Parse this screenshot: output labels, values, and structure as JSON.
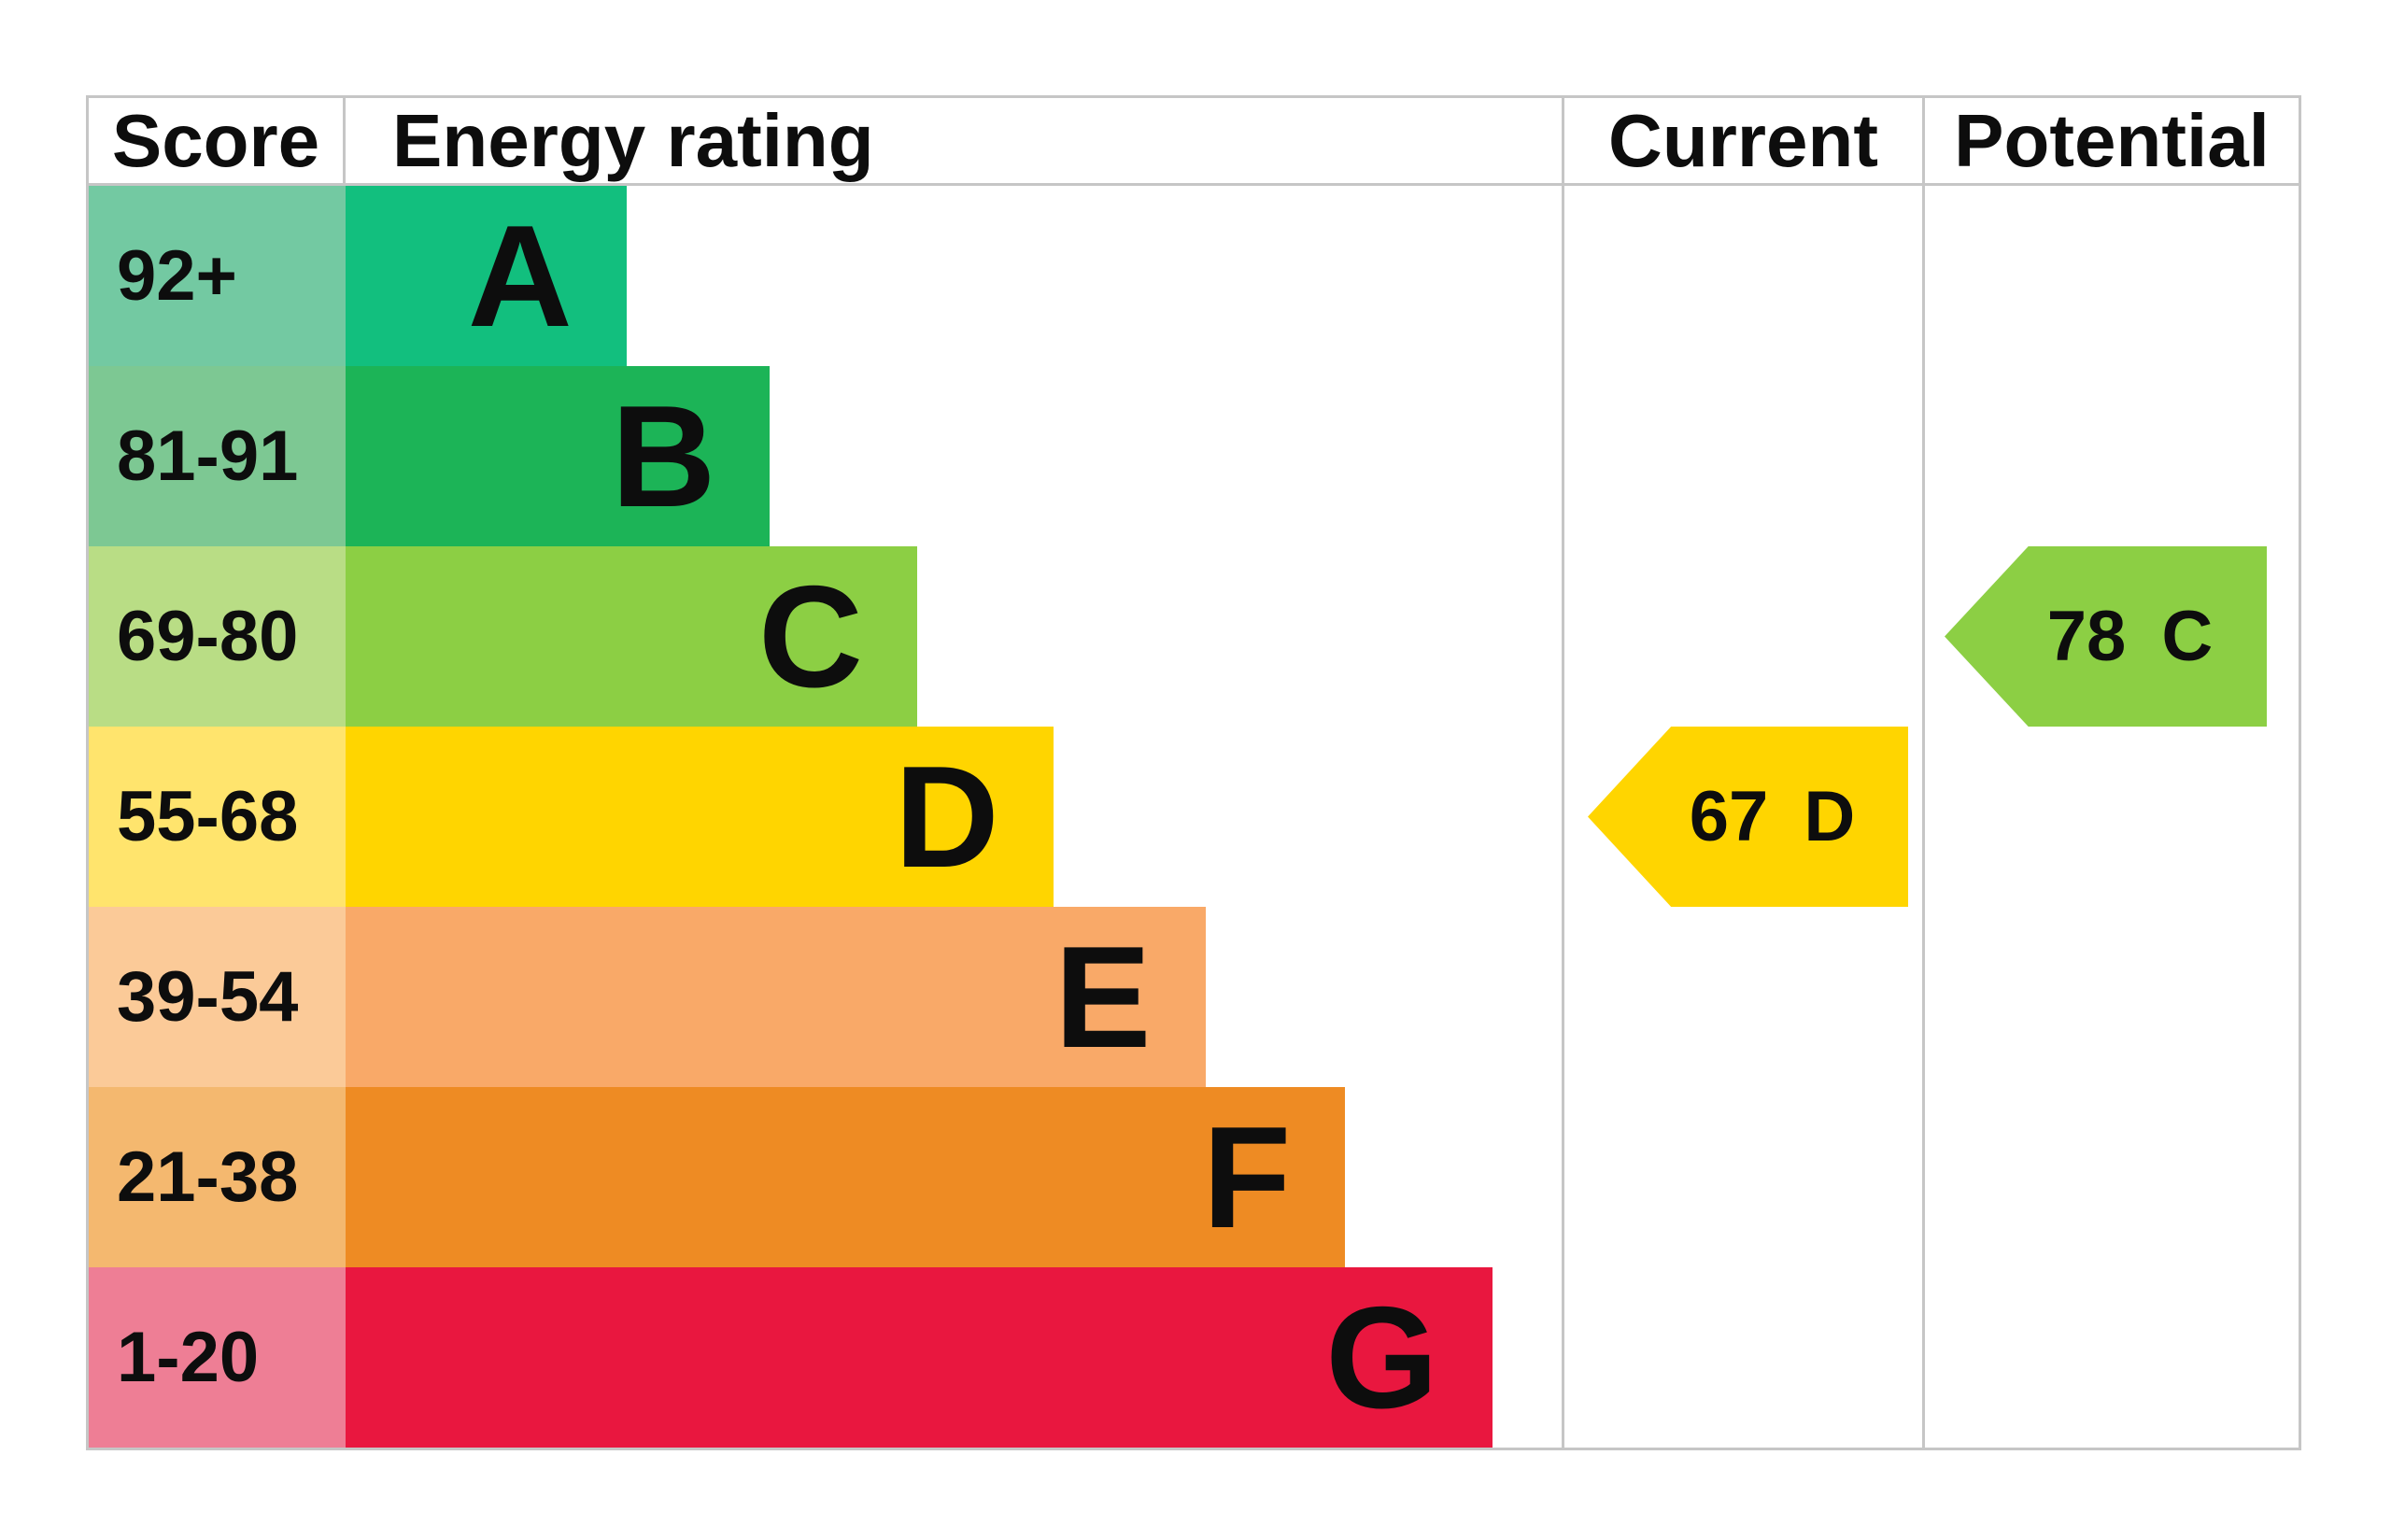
{
  "header": {
    "score": "Score",
    "energy_rating": "Energy rating",
    "current": "Current",
    "potential": "Potential"
  },
  "colors": {
    "background": "#ffffff",
    "grid_border": "#c6c6c6",
    "text": "#0d0d0d"
  },
  "chart_data": {
    "type": "bar",
    "title": "EPC energy efficiency rating chart",
    "legend_position": "none",
    "grid": "column dividers only",
    "categories": [
      "A",
      "B",
      "C",
      "D",
      "E",
      "F",
      "G"
    ],
    "bands": [
      {
        "letter": "A",
        "score_range": "92+",
        "bar_color": "#12bf7e",
        "score_bg": "#73c9a2",
        "bar_width_pct": 23.1
      },
      {
        "letter": "B",
        "score_range": "81-91",
        "bar_color": "#1cb457",
        "score_bg": "#7dc893",
        "bar_width_pct": 34.9
      },
      {
        "letter": "C",
        "score_range": "69-80",
        "bar_color": "#8ccf44",
        "score_bg": "#b9dd85",
        "bar_width_pct": 47.0
      },
      {
        "letter": "D",
        "score_range": "55-68",
        "bar_color": "#ffd500",
        "score_bg": "#ffe46d",
        "bar_width_pct": 58.2
      },
      {
        "letter": "E",
        "score_range": "39-54",
        "bar_color": "#f9a968",
        "score_bg": "#fbca98",
        "bar_width_pct": 70.7
      },
      {
        "letter": "F",
        "score_range": "21-38",
        "bar_color": "#ee8b23",
        "score_bg": "#f4b86f",
        "bar_width_pct": 82.2
      },
      {
        "letter": "G",
        "score_range": "1-20",
        "bar_color": "#e9173f",
        "score_bg": "#ee7e95",
        "bar_width_pct": 94.3
      }
    ],
    "pointers": {
      "current": {
        "value": 67,
        "letter": "D",
        "band_index": 3,
        "color": "#ffd500"
      },
      "potential": {
        "value": 78,
        "letter": "C",
        "band_index": 2,
        "color": "#8ccf44"
      }
    }
  }
}
